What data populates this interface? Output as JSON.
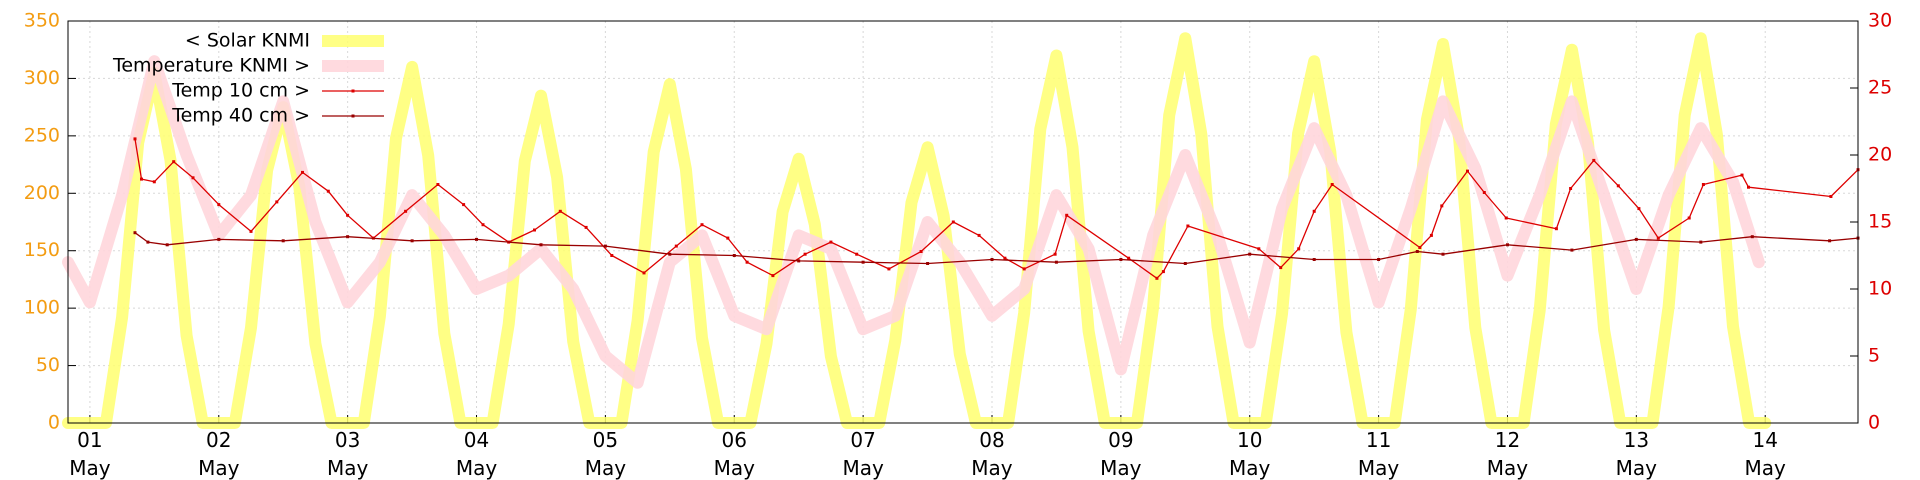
{
  "chart_data": {
    "type": "line",
    "legend": "top-left",
    "grid": true,
    "xlim": [
      0.83,
      14.72
    ],
    "xticks": [
      {
        "value": 1,
        "label": "01\nMay"
      },
      {
        "value": 2,
        "label": "02\nMay"
      },
      {
        "value": 3,
        "label": "03\nMay"
      },
      {
        "value": 4,
        "label": "04\nMay"
      },
      {
        "value": 5,
        "label": "05\nMay"
      },
      {
        "value": 6,
        "label": "06\nMay"
      },
      {
        "value": 7,
        "label": "07\nMay"
      },
      {
        "value": 8,
        "label": "08\nMay"
      },
      {
        "value": 9,
        "label": "09\nMay"
      },
      {
        "value": 10,
        "label": "10\nMay"
      },
      {
        "value": 11,
        "label": "11\nMay"
      },
      {
        "value": 12,
        "label": "12\nMay"
      },
      {
        "value": 13,
        "label": "13\nMay"
      },
      {
        "value": 14,
        "label": "14\nMay"
      }
    ],
    "ylim": [
      0,
      350
    ],
    "yticks": [
      0,
      50,
      100,
      150,
      200,
      250,
      300,
      350
    ],
    "ycolor": "#f39c12",
    "y2lim": [
      0,
      30
    ],
    "y2ticks": [
      0,
      5,
      10,
      15,
      20,
      25,
      30
    ],
    "y2color": "#dd0000",
    "series": [
      {
        "name": "< Solar KNMI",
        "color": "#ffff70",
        "axis": "y",
        "x": [
          0.83,
          1,
          1.125,
          1.25,
          1.375,
          1.5,
          1.625,
          1.75,
          1.875,
          2,
          2.125,
          2.25,
          2.375,
          2.5,
          2.625,
          2.75,
          2.875,
          3,
          3.125,
          3.25,
          3.375,
          3.5,
          3.625,
          3.75,
          3.875,
          4,
          4.125,
          4.25,
          4.375,
          4.5,
          4.625,
          4.75,
          4.875,
          5,
          5.125,
          5.25,
          5.375,
          5.5,
          5.625,
          5.75,
          5.875,
          6,
          6.125,
          6.25,
          6.375,
          6.5,
          6.625,
          6.75,
          6.875,
          7,
          7.125,
          7.25,
          7.375,
          7.5,
          7.625,
          7.75,
          7.875,
          8,
          8.125,
          8.25,
          8.375,
          8.5,
          8.625,
          8.75,
          8.875,
          9,
          9.125,
          9.25,
          9.375,
          9.5,
          9.625,
          9.75,
          9.875,
          10,
          10.125,
          10.25,
          10.375,
          10.5,
          10.625,
          10.75,
          10.875,
          11,
          11.125,
          11.25,
          11.375,
          11.5,
          11.625,
          11.75,
          11.875,
          12,
          12.125,
          12.25,
          12.375,
          12.5,
          12.625,
          12.75,
          12.875,
          13,
          13.125,
          13.25,
          13.375,
          13.5,
          13.625,
          13.75,
          13.875,
          14
        ],
        "values": [
          0,
          0,
          0,
          92,
          244,
          305,
          229,
          76,
          0,
          0,
          0,
          83,
          220,
          275,
          206,
          69,
          0,
          0,
          0,
          93,
          248,
          310,
          233,
          78,
          0,
          0,
          0,
          86,
          228,
          285,
          214,
          71,
          0,
          0,
          0,
          89,
          236,
          295,
          221,
          74,
          0,
          0,
          0,
          69,
          184,
          230,
          173,
          58,
          0,
          0,
          0,
          72,
          192,
          240,
          180,
          60,
          0,
          0,
          0,
          96,
          256,
          320,
          240,
          80,
          0,
          0,
          0,
          101,
          268,
          335,
          251,
          84,
          0,
          0,
          0,
          95,
          252,
          315,
          236,
          79,
          0,
          0,
          0,
          99,
          264,
          330,
          248,
          83,
          0,
          0,
          0,
          98,
          260,
          325,
          244,
          81,
          0,
          0,
          0,
          101,
          268,
          335,
          251,
          84,
          0,
          0
        ]
      },
      {
        "name": "Temperature KNMI >",
        "color": "#ffd6dc",
        "axis": "y2",
        "x": [
          0.83,
          1,
          1.25,
          1.5,
          1.75,
          2,
          2.25,
          2.5,
          2.75,
          3,
          3.25,
          3.5,
          3.75,
          4,
          4.25,
          4.5,
          4.75,
          5,
          5.25,
          5.5,
          5.75,
          6,
          6.25,
          6.5,
          6.75,
          7,
          7.25,
          7.5,
          7.75,
          8,
          8.25,
          8.5,
          8.75,
          9,
          9.25,
          9.5,
          9.75,
          10,
          10.25,
          10.5,
          10.75,
          11,
          11.25,
          11.5,
          11.75,
          12,
          12.25,
          12.5,
          12.75,
          13,
          13.25,
          13.5,
          13.75,
          13.95
        ],
        "values": [
          12,
          9,
          17,
          27,
          20,
          14,
          17,
          24,
          15,
          9,
          12,
          17,
          14,
          10,
          11,
          13,
          10,
          5,
          3,
          12,
          14,
          8,
          7,
          14,
          13,
          7,
          8,
          15,
          12,
          8,
          10,
          17,
          13,
          4,
          14,
          20,
          14,
          6,
          16,
          22,
          17,
          9,
          16,
          24,
          19,
          11,
          17,
          24,
          17,
          10,
          17,
          22,
          18,
          12
        ]
      },
      {
        "name": "Temp 10 cm >",
        "color": "#dd0000",
        "axis": "y2",
        "x": [
          1.35,
          1.4,
          1.5,
          1.65,
          1.8,
          2.0,
          2.25,
          2.45,
          2.65,
          2.85,
          3.0,
          3.2,
          3.45,
          3.7,
          3.9,
          4.05,
          4.25,
          4.45,
          4.65,
          4.85,
          5.05,
          5.3,
          5.55,
          5.75,
          5.95,
          6.1,
          6.3,
          6.55,
          6.75,
          6.95,
          7.2,
          7.45,
          7.7,
          7.9,
          8.1,
          8.25,
          8.49,
          8.58,
          9.06,
          9.28,
          9.33,
          9.52,
          10.07,
          10.24,
          10.38,
          10.5,
          10.64,
          11.32,
          11.41,
          11.49,
          11.69,
          11.82,
          11.99,
          12.38,
          12.49,
          12.67,
          12.86,
          13.02,
          13.17,
          13.41,
          13.52,
          13.82,
          13.87,
          14.51,
          14.72
        ],
        "values": [
          21.2,
          18.2,
          18.0,
          19.5,
          18.3,
          16.3,
          14.3,
          16.5,
          18.7,
          17.3,
          15.5,
          13.8,
          15.8,
          17.8,
          16.3,
          14.8,
          13.5,
          14.4,
          15.8,
          14.6,
          12.5,
          11.2,
          13.2,
          14.8,
          13.8,
          12.0,
          11.0,
          12.6,
          13.5,
          12.6,
          11.5,
          12.8,
          15.0,
          14.0,
          12.3,
          11.5,
          12.6,
          15.5,
          12.3,
          10.8,
          11.3,
          14.7,
          13.0,
          11.6,
          13.0,
          15.8,
          17.8,
          13.1,
          14.0,
          16.2,
          18.8,
          17.2,
          15.3,
          14.5,
          17.5,
          19.6,
          17.7,
          16.0,
          13.8,
          15.3,
          17.8,
          18.5,
          17.6,
          16.9,
          18.9
        ]
      },
      {
        "name": "Temp 40 cm >",
        "color": "#990000",
        "axis": "y2",
        "x": [
          1.35,
          1.45,
          1.6,
          2.0,
          2.5,
          3.0,
          3.5,
          4.0,
          4.5,
          5.0,
          5.5,
          6.0,
          6.5,
          7.0,
          7.5,
          8.0,
          8.5,
          9.0,
          9.5,
          10.0,
          10.5,
          11.0,
          11.3,
          11.5,
          12.0,
          12.5,
          13.0,
          13.5,
          13.9,
          14.5,
          14.72
        ],
        "values": [
          14.2,
          13.5,
          13.3,
          13.7,
          13.6,
          13.9,
          13.6,
          13.7,
          13.3,
          13.2,
          12.6,
          12.5,
          12.1,
          12.0,
          11.9,
          12.2,
          12.0,
          12.2,
          11.9,
          12.6,
          12.2,
          12.2,
          12.8,
          12.6,
          13.3,
          12.9,
          13.7,
          13.5,
          13.9,
          13.6,
          13.8
        ]
      }
    ]
  }
}
